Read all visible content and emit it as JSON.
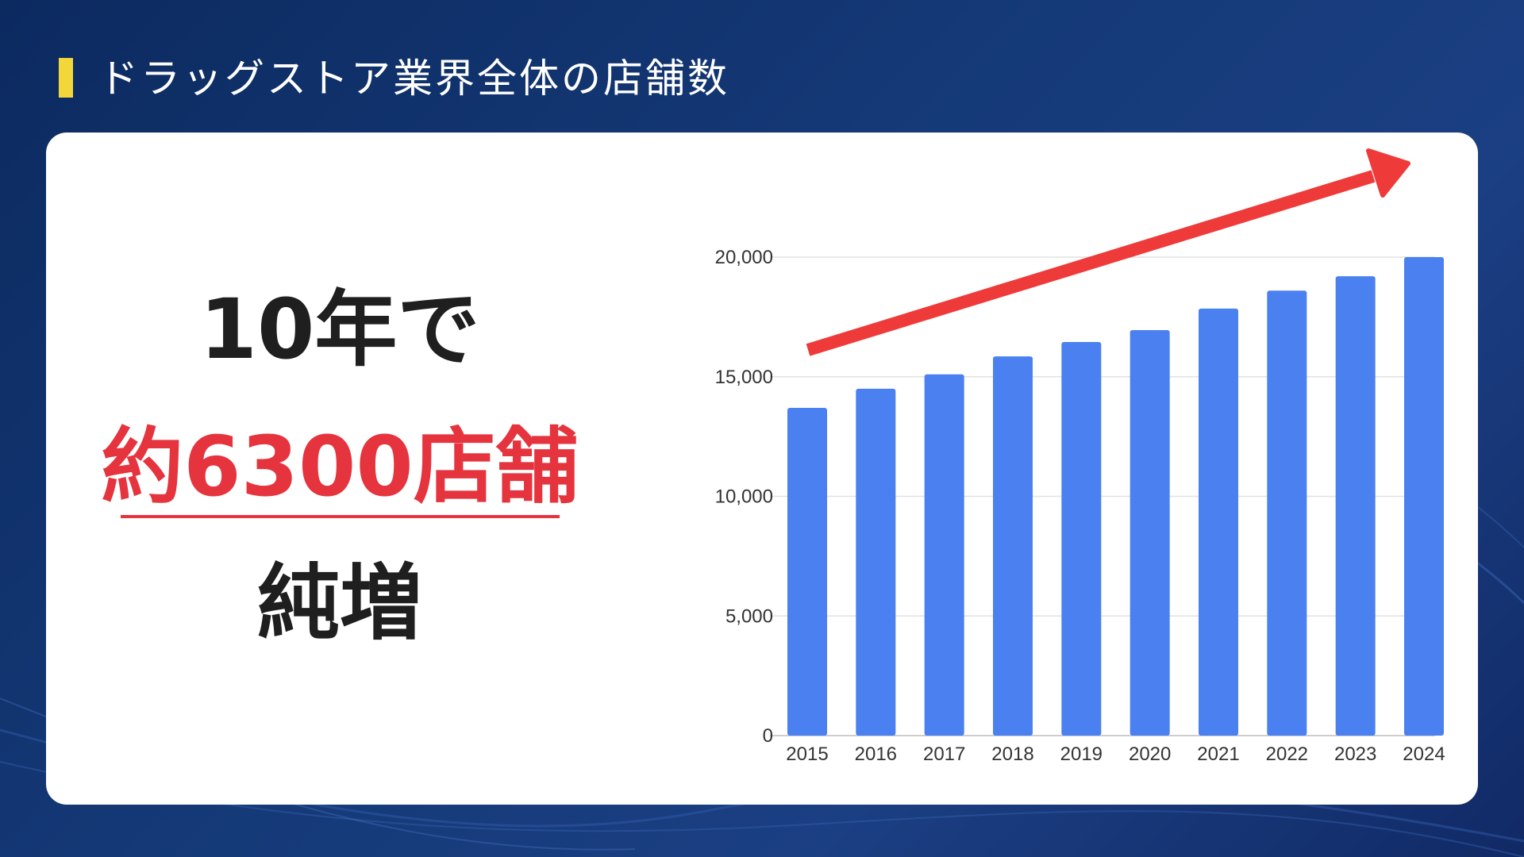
{
  "header": {
    "title": "ドラッグストア業界全体の店舗数"
  },
  "headline": {
    "line1": "10年で",
    "line2": "約6300店舗",
    "line3": "純増"
  },
  "colors": {
    "background": "#153a78",
    "accent_bar": "#f2d63a",
    "bar": "#4a80f0",
    "arrow": "#ef3a3a",
    "highlight_text": "#e5343d"
  },
  "chart_data": {
    "type": "bar",
    "categories": [
      "2015",
      "2016",
      "2017",
      "2018",
      "2019",
      "2020",
      "2021",
      "2022",
      "2023",
      "2024"
    ],
    "values": [
      13700,
      14500,
      15100,
      15850,
      16450,
      16950,
      17850,
      18600,
      19200,
      20000
    ],
    "ylim": [
      0,
      20000
    ],
    "yticks": [
      0,
      5000,
      10000,
      15000,
      20000
    ],
    "ytick_labels": [
      "0",
      "5,000",
      "10,000",
      "15,000",
      "20,000"
    ],
    "grid": true,
    "legend": "none",
    "annotation": "upward-trend-arrow"
  }
}
